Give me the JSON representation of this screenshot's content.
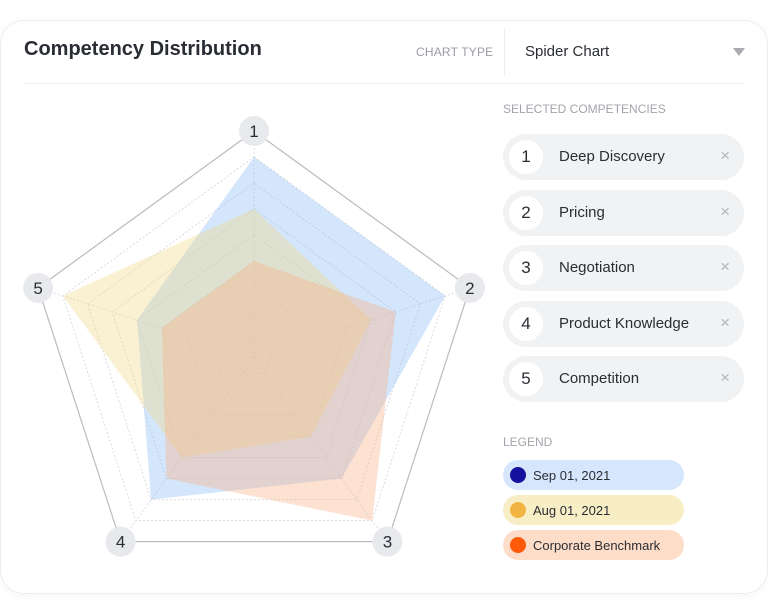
{
  "header": {
    "title": "Competency Distribution",
    "chart_type_label": "CHART TYPE",
    "chart_type_value": "Spider Chart"
  },
  "competencies": {
    "label": "SELECTED COMPETENCIES",
    "items": [
      {
        "num": "1",
        "name": "Deep Discovery"
      },
      {
        "num": "2",
        "name": "Pricing"
      },
      {
        "num": "3",
        "name": "Negotiation"
      },
      {
        "num": "4",
        "name": "Product Knowledge"
      },
      {
        "num": "5",
        "name": "Competition"
      }
    ],
    "remove_icon": "×"
  },
  "legend": {
    "label": "LEGEND",
    "items": [
      {
        "name": "Sep 01, 2021",
        "dot": "#170f9e",
        "bg": "#d6e6fc"
      },
      {
        "name": "Aug 01, 2021",
        "dot": "#f1b443",
        "bg": "#f8eec6"
      },
      {
        "name": "Corporate Benchmark",
        "dot": "#ff5a0a",
        "bg": "#fddcc8"
      }
    ]
  },
  "chart_data": {
    "type": "radar",
    "categories": [
      "1",
      "2",
      "3",
      "4",
      "5"
    ],
    "rlim": [
      0,
      9
    ],
    "grid": true,
    "legend_position": "right",
    "series": [
      {
        "name": "Sep 01, 2021",
        "values": [
          8,
          8,
          6,
          7,
          5
        ],
        "fill": "#8fbdf5"
      },
      {
        "name": "Aug 01, 2021",
        "values": [
          6,
          5,
          4,
          5,
          8
        ],
        "fill": "#eed98a"
      },
      {
        "name": "Corporate Benchmark",
        "values": [
          4,
          6,
          8,
          6,
          4
        ],
        "fill": "#fbb48a"
      }
    ]
  }
}
